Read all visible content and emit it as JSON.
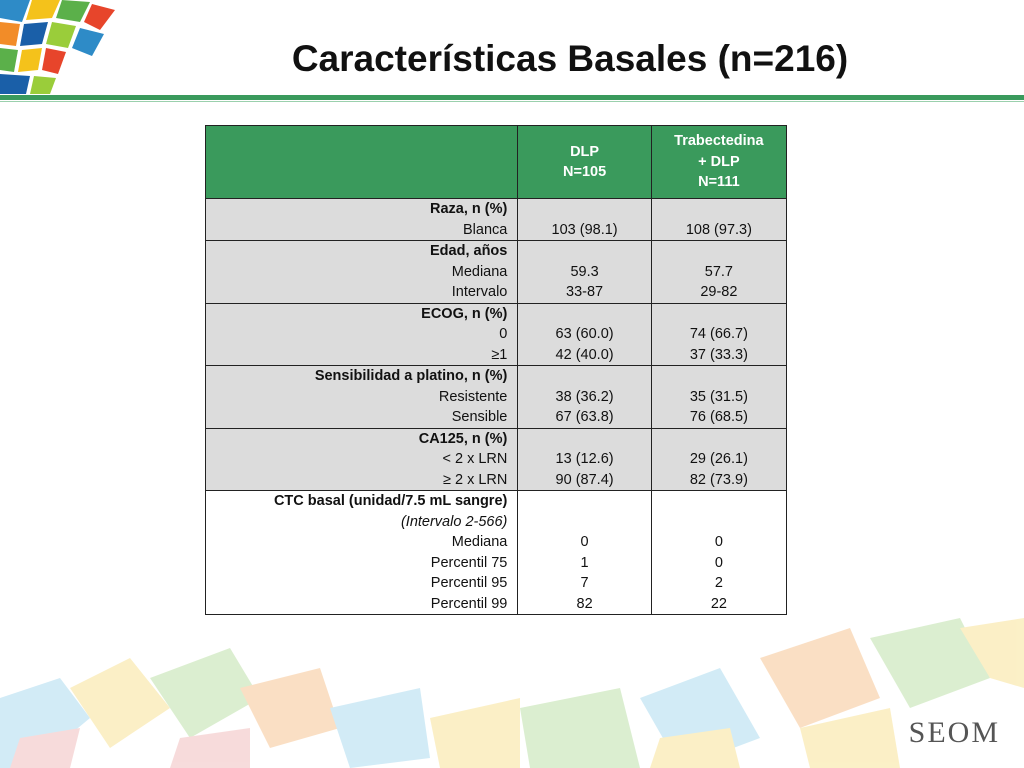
{
  "title": "Características Basales (n=216)",
  "header": {
    "col1": [
      "DLP",
      "N=105"
    ],
    "col2": [
      "Trabectedina",
      "+ DLP",
      "N=111"
    ]
  },
  "groups": [
    {
      "heading": "Raza, n (%)",
      "rows": [
        {
          "label": "Blanca",
          "dlp": "103 (98.1)",
          "trab": "108 (97.3)"
        }
      ]
    },
    {
      "heading": "Edad, años",
      "rows": [
        {
          "label": "Mediana",
          "dlp": "59.3",
          "trab": "57.7"
        },
        {
          "label": "Intervalo",
          "dlp": "33-87",
          "trab": "29-82"
        }
      ]
    },
    {
      "heading": "ECOG, n (%)",
      "rows": [
        {
          "label": "0",
          "dlp": "63 (60.0)",
          "trab": "74 (66.7)"
        },
        {
          "label": "≥1",
          "dlp": "42 (40.0)",
          "trab": "37 (33.3)"
        }
      ]
    },
    {
      "heading": "Sensibilidad a platino, n (%)",
      "rows": [
        {
          "label": "Resistente",
          "dlp": "38 (36.2)",
          "trab": "35 (31.5)"
        },
        {
          "label": "Sensible",
          "dlp": "67 (63.8)",
          "trab": "76 (68.5)"
        }
      ]
    },
    {
      "heading": "CA125, n (%)",
      "rows": [
        {
          "label": "< 2 x LRN",
          "dlp": "13 (12.6)",
          "trab": "29 (26.1)"
        },
        {
          "label": "≥ 2 x LRN",
          "dlp": "90 (87.4)",
          "trab": "82 (73.9)"
        }
      ]
    },
    {
      "heading": "CTC basal (unidad/7.5 mL sangre)",
      "subheading": "(Intervalo 2-566)",
      "rows": [
        {
          "label": "Mediana",
          "dlp": "0",
          "trab": "0"
        },
        {
          "label": "Percentil 75",
          "dlp": "1",
          "trab": "0"
        },
        {
          "label": "Percentil 95",
          "dlp": "7",
          "trab": "2"
        },
        {
          "label": "Percentil 99",
          "dlp": "82",
          "trab": "22"
        }
      ]
    }
  ],
  "footer_logo": "SEOM",
  "colors": {
    "accent": "#3a9a5c",
    "row_shade": "#dcdcdc"
  }
}
